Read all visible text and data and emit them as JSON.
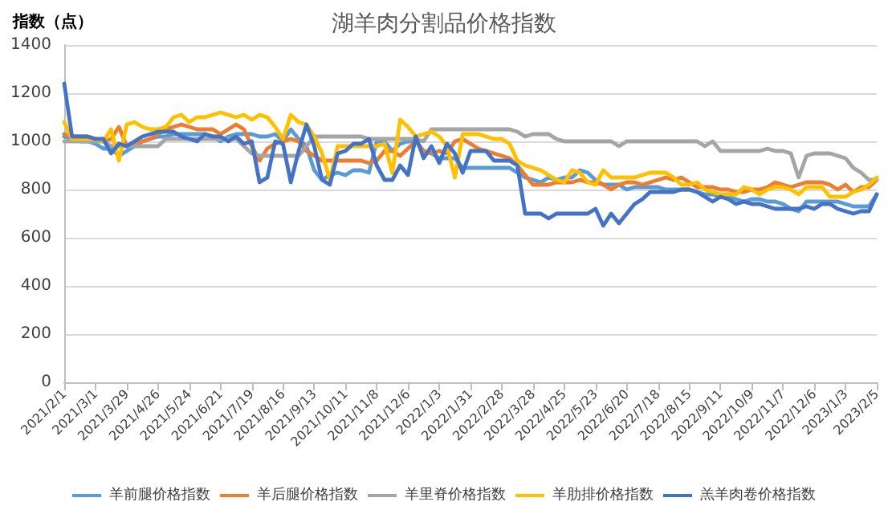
{
  "chart_data": {
    "type": "line",
    "title": "湖羊肉分割品价格指数",
    "ylabel": "指数（点）",
    "categories": [
      "2021/2/1",
      null,
      null,
      null,
      "2021/3/1",
      null,
      null,
      null,
      "2021/3/29",
      null,
      null,
      null,
      "2021/4/26",
      null,
      null,
      null,
      "2021/5/24",
      null,
      null,
      null,
      "2021/6/21",
      null,
      null,
      null,
      "2021/7/19",
      null,
      null,
      null,
      "2021/8/16",
      null,
      null,
      null,
      "2021/9/13",
      null,
      null,
      null,
      "2021/10/11",
      null,
      null,
      null,
      "2021/11/8",
      null,
      null,
      null,
      "2021/12/6",
      null,
      null,
      null,
      "2022/1/3",
      null,
      null,
      null,
      "2022/1/31",
      null,
      null,
      null,
      "2022/2/28",
      null,
      null,
      null,
      "2022/3/28",
      null,
      null,
      null,
      "2022/4/25",
      null,
      null,
      null,
      "2022/5/23",
      null,
      null,
      null,
      "2022/6/20",
      null,
      null,
      null,
      "2022/7/18",
      null,
      null,
      null,
      "2022/8/15",
      null,
      null,
      null,
      "2022/9/11",
      null,
      null,
      null,
      "2022/10/9",
      null,
      null,
      null,
      "2022/11/7",
      null,
      null,
      null,
      "2022/12/6",
      null,
      null,
      null,
      "2023/1/3",
      null,
      null,
      null,
      "2023/2/5"
    ],
    "series": [
      {
        "name": "羊前腿价格指数",
        "color": "#5b9bd5",
        "values": [
          1020,
          1010,
          1000,
          1000,
          990,
          970,
          970,
          940,
          960,
          980,
          1000,
          1010,
          1020,
          1020,
          1030,
          1030,
          1030,
          1030,
          1030,
          1020,
          1000,
          1020,
          1030,
          1030,
          1030,
          1020,
          1020,
          1030,
          1000,
          1050,
          1010,
          980,
          880,
          840,
          860,
          870,
          860,
          880,
          880,
          870,
          1000,
          1000,
          960,
          990,
          1000,
          1000,
          960,
          950,
          930,
          930,
          930,
          890,
          890,
          890,
          890,
          890,
          890,
          890,
          870,
          850,
          840,
          830,
          850,
          840,
          850,
          850,
          880,
          870,
          840,
          820,
          820,
          820,
          800,
          810,
          810,
          810,
          810,
          800,
          800,
          800,
          800,
          790,
          780,
          780,
          770,
          770,
          760,
          750,
          760,
          760,
          750,
          750,
          740,
          720,
          710,
          750,
          750,
          750,
          750,
          750,
          740,
          730,
          730,
          730,
          780
        ]
      },
      {
        "name": "羊后腿价格指数",
        "color": "#ed7d31",
        "values": [
          1030,
          1020,
          1020,
          1020,
          1010,
          1000,
          1010,
          1060,
          980,
          990,
          1000,
          1010,
          1030,
          1050,
          1060,
          1070,
          1060,
          1050,
          1050,
          1050,
          1030,
          1050,
          1070,
          1050,
          980,
          920,
          970,
          990,
          1000,
          1010,
          1000,
          960,
          940,
          920,
          920,
          920,
          920,
          920,
          920,
          910,
          920,
          960,
          960,
          940,
          970,
          1000,
          960,
          950,
          960,
          950,
          1000,
          1010,
          990,
          970,
          960,
          950,
          940,
          930,
          900,
          860,
          820,
          820,
          820,
          830,
          830,
          830,
          840,
          830,
          830,
          820,
          800,
          820,
          830,
          830,
          820,
          830,
          840,
          850,
          840,
          850,
          830,
          810,
          810,
          810,
          800,
          800,
          790,
          790,
          800,
          800,
          810,
          830,
          820,
          810,
          820,
          830,
          830,
          830,
          820,
          800,
          820,
          790,
          810,
          810,
          840
        ]
      },
      {
        "name": "羊里脊价格指数",
        "color": "#a5a5a5",
        "values": [
          1000,
          1000,
          1000,
          1000,
          1000,
          1000,
          980,
          980,
          980,
          980,
          980,
          980,
          980,
          1010,
          1010,
          1010,
          1010,
          1010,
          1010,
          1010,
          1010,
          1010,
          1010,
          980,
          950,
          940,
          940,
          940,
          940,
          940,
          940,
          980,
          1020,
          1020,
          1020,
          1020,
          1020,
          1020,
          1020,
          1010,
          1010,
          1010,
          1010,
          1010,
          1010,
          1010,
          1000,
          1050,
          1050,
          1050,
          1050,
          1050,
          1050,
          1050,
          1050,
          1050,
          1050,
          1050,
          1040,
          1020,
          1030,
          1030,
          1030,
          1010,
          1000,
          1000,
          1000,
          1000,
          1000,
          1000,
          1000,
          980,
          1000,
          1000,
          1000,
          1000,
          1000,
          1000,
          1000,
          1000,
          1000,
          1000,
          980,
          1000,
          960,
          960,
          960,
          960,
          960,
          960,
          970,
          960,
          960,
          950,
          850,
          940,
          950,
          950,
          950,
          940,
          930,
          890,
          870,
          840,
          840
        ]
      },
      {
        "name": "羊肋排价格指数",
        "color": "#ffc000",
        "values": [
          1080,
          1010,
          1010,
          1010,
          1010,
          1000,
          1050,
          920,
          1070,
          1080,
          1060,
          1050,
          1050,
          1060,
          1100,
          1110,
          1080,
          1100,
          1100,
          1110,
          1120,
          1110,
          1100,
          1110,
          1090,
          1110,
          1100,
          1060,
          1010,
          1110,
          1080,
          1070,
          1020,
          950,
          840,
          980,
          980,
          980,
          980,
          980,
          980,
          990,
          870,
          1090,
          1060,
          1020,
          1030,
          1040,
          1020,
          980,
          850,
          1030,
          1030,
          1030,
          1020,
          1010,
          1010,
          990,
          920,
          900,
          890,
          880,
          860,
          840,
          830,
          880,
          870,
          830,
          820,
          880,
          850,
          850,
          850,
          850,
          860,
          870,
          870,
          870,
          850,
          820,
          820,
          830,
          800,
          790,
          780,
          780,
          780,
          810,
          800,
          780,
          800,
          810,
          810,
          800,
          780,
          810,
          810,
          810,
          770,
          770,
          770,
          790,
          800,
          820,
          850
        ]
      },
      {
        "name": "羔羊肉卷价格指数",
        "color": "#4472c4",
        "values": [
          1240,
          1020,
          1020,
          1020,
          1010,
          1010,
          950,
          990,
          980,
          1000,
          1020,
          1030,
          1040,
          1040,
          1040,
          1020,
          1010,
          1000,
          1030,
          1020,
          1020,
          1000,
          1020,
          990,
          1000,
          830,
          850,
          1000,
          990,
          830,
          960,
          1070,
          980,
          840,
          820,
          950,
          960,
          990,
          990,
          1010,
          900,
          840,
          840,
          900,
          860,
          1020,
          930,
          980,
          910,
          990,
          950,
          870,
          960,
          960,
          960,
          920,
          920,
          920,
          900,
          700,
          700,
          700,
          680,
          700,
          700,
          700,
          700,
          700,
          720,
          650,
          700,
          660,
          700,
          740,
          760,
          790,
          790,
          790,
          790,
          800,
          800,
          790,
          770,
          750,
          770,
          760,
          740,
          750,
          740,
          740,
          730,
          720,
          720,
          720,
          720,
          730,
          720,
          740,
          740,
          720,
          710,
          700,
          710,
          710,
          780
        ]
      }
    ],
    "ylim": [
      0,
      1400
    ],
    "yticks": [
      0,
      200,
      400,
      600,
      800,
      1000,
      1200,
      1400
    ],
    "grid": "y",
    "legend": "bottom",
    "marker": "none",
    "line_style": "solid"
  }
}
